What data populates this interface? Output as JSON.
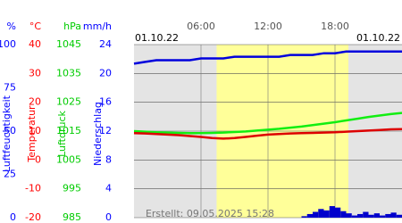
{
  "chart_data": {
    "type": "line",
    "date_left": "01.10.22",
    "date_right": "01.10.22",
    "footer": "Erstellt: 09.05.2025 15:28",
    "xlim": [
      0,
      24
    ],
    "xticks": [
      {
        "value": 6,
        "label": "06:00"
      },
      {
        "value": 12,
        "label": "12:00"
      },
      {
        "value": 18,
        "label": "18:00"
      }
    ],
    "daylight": [
      7.4,
      19.2
    ],
    "grid": true,
    "axes": [
      {
        "unit": "%",
        "label": "Luftfeuchtigkeit",
        "color": "#0000ff",
        "lim": [
          0,
          100
        ],
        "ticks": [
          100,
          75,
          50,
          25,
          0
        ]
      },
      {
        "unit": "°C",
        "label": "Temperatur",
        "color": "#ff0000",
        "lim": [
          -20,
          40
        ],
        "ticks": [
          40,
          30,
          20,
          10,
          0,
          -10,
          -20
        ]
      },
      {
        "unit": "hPa",
        "label": "Luftdruck",
        "color": "#00cc00",
        "lim": [
          985,
          1045
        ],
        "ticks": [
          1045,
          1035,
          1025,
          1015,
          1005,
          995,
          985
        ]
      },
      {
        "unit": "mm/h",
        "label": "Niederschlag",
        "color": "#0000ff",
        "lim": [
          0,
          24
        ],
        "ticks": [
          24,
          20,
          16,
          12,
          8,
          4,
          0
        ]
      }
    ],
    "x": [
      0,
      1,
      2,
      3,
      4,
      5,
      6,
      7,
      8,
      9,
      10,
      11,
      12,
      13,
      14,
      15,
      16,
      17,
      18,
      19,
      20,
      21,
      22,
      23,
      24
    ],
    "series": [
      {
        "axis": 0,
        "color": "#0000dd",
        "values": [
          89,
          90,
          91,
          91,
          91,
          91,
          92,
          92,
          92,
          93,
          93,
          93,
          93,
          93,
          94,
          94,
          94,
          95,
          95,
          96,
          96,
          96,
          96,
          96,
          96
        ]
      },
      {
        "axis": 2,
        "color": "#11ee11",
        "values": [
          1015,
          1014.8,
          1014.6,
          1014.5,
          1014.4,
          1014.3,
          1014.3,
          1014.4,
          1014.5,
          1014.7,
          1014.9,
          1015.2,
          1015.5,
          1015.8,
          1016.2,
          1016.6,
          1017.1,
          1017.6,
          1018.1,
          1018.7,
          1019.3,
          1019.9,
          1020.4,
          1020.9,
          1021.3
        ]
      },
      {
        "axis": 1,
        "color": "#dd0000",
        "values": [
          9.3,
          9.2,
          9.0,
          8.8,
          8.6,
          8.3,
          8.0,
          7.6,
          7.4,
          7.6,
          8.0,
          8.4,
          8.8,
          9.0,
          9.2,
          9.3,
          9.4,
          9.5,
          9.6,
          9.8,
          10.0,
          10.2,
          10.4,
          10.6,
          10.7
        ]
      }
    ],
    "precipitation": {
      "axis": 3,
      "color": "#0000cc",
      "x": [
        15,
        15.5,
        16,
        16.5,
        17,
        17.5,
        18,
        18.5,
        19,
        19.5,
        20,
        20.5,
        21,
        21.5,
        22,
        22.5,
        23,
        23.5
      ],
      "values": [
        0.2,
        0.5,
        0.8,
        1.2,
        1.0,
        1.6,
        1.4,
        0.9,
        0.6,
        0.3,
        0.5,
        0.8,
        0.4,
        0.6,
        0.3,
        0.5,
        0.7,
        0.4
      ]
    }
  }
}
